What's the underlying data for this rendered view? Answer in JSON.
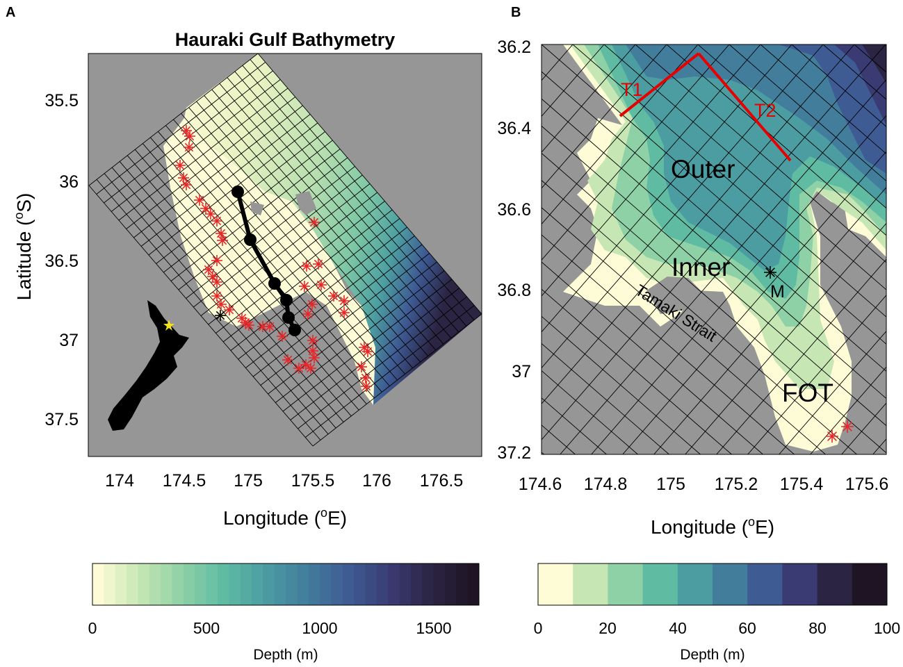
{
  "panel_a": {
    "letter": "A",
    "title": "Hauraki Gulf Bathymetry",
    "xlabel": "Longitude (",
    "xlabel_sup": "o",
    "xlabel_end": "E)",
    "ylabel": "Latitude (",
    "ylabel_sup": "o",
    "ylabel_end": "S)",
    "x_ticks": [
      "174",
      "174.5",
      "175",
      "175.5",
      "176",
      "176.5"
    ],
    "y_ticks": [
      "35.5",
      "36",
      "36.5",
      "37",
      "37.5"
    ],
    "colorbar": {
      "label": "Depth (m)",
      "ticks": [
        "0",
        "500",
        "1000",
        "1500"
      ],
      "range": [
        0,
        1700
      ]
    }
  },
  "panel_b": {
    "letter": "B",
    "xlabel": "Longitude (",
    "xlabel_sup": "o",
    "xlabel_end": "E)",
    "x_ticks": [
      "174.6",
      "174.8",
      "175",
      "175.2",
      "175.4",
      "175.6"
    ],
    "y_ticks": [
      "36.2",
      "36.4",
      "36.6",
      "36.8",
      "37",
      "37.2"
    ],
    "labels": {
      "outer": "Outer",
      "inner": "Inner",
      "strait": "Tamaki Strait",
      "fot": "FOT",
      "mooring": "M",
      "transect1": "T1",
      "transect2": "T2"
    },
    "colorbar": {
      "label": "Depth (m)",
      "ticks": [
        "0",
        "20",
        "40",
        "60",
        "80",
        "100"
      ],
      "range": [
        0,
        100
      ]
    }
  },
  "colors": {
    "land": "#969696",
    "stations": "#e8262a",
    "transect": "#e60000",
    "marker_yellow": "#f2e21b",
    "colormap": [
      "#fefcd6",
      "#c6e6b4",
      "#8fd1a6",
      "#5fbca3",
      "#4c9da2",
      "#427d9c",
      "#3f5b94",
      "#3a3b73",
      "#2b2443",
      "#1e1424"
    ]
  }
}
